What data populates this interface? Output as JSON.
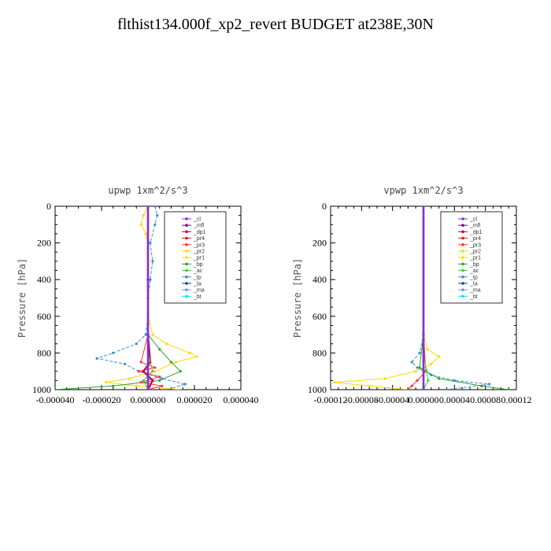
{
  "title": "flthist134.000f_xp2_revert  BUDGET at238E,30N",
  "legend_colors": {
    "_cl": "#8a2be2",
    "_mfl": "#8b008b",
    "_dp1": "#c8004b",
    "_pr4": "#d22222",
    "_pr3": "#ff3030",
    "_pr2": "#ffd700",
    "_pr1": "#ffe000",
    "_bp": "#2ea02e",
    "_ac": "#3cd23c",
    "_tp": "#3a8fd0",
    "_ta": "#1c3f8f",
    "_ma": "#5aa0e0",
    "_bt": "#00e5ff"
  },
  "chart_data": [
    {
      "type": "line",
      "title": "upwp   1xm^2/s^3",
      "xlabel": "",
      "ylabel": "Pressure [hPa]",
      "xlim": [
        -4e-05,
        4e-05
      ],
      "ylim": [
        1000,
        0
      ],
      "xtick_labels": [
        "-0.000040",
        "-0.000020",
        "0.000000",
        "0.000020",
        "0.000040"
      ],
      "xtick_values": [
        -4e-05,
        -2e-05,
        0,
        2e-05,
        4e-05
      ],
      "ytick_labels": [
        "0",
        "200",
        "400",
        "600",
        "800",
        "1000"
      ],
      "ytick_values": [
        0,
        200,
        400,
        600,
        800,
        1000
      ],
      "legend": [
        "_cl",
        "_mfl",
        "_dp1",
        "_pr4",
        "_pr3",
        "_pr2",
        "_pr1",
        "_bp",
        "_ac",
        "_tp",
        "_ta",
        "_ma",
        "_bt"
      ],
      "legend_position": "top-right",
      "series": [
        {
          "name": "_tp",
          "y": [
            0,
            50,
            100,
            200,
            300,
            400,
            500,
            600,
            700,
            750,
            800,
            830,
            860,
            900,
            940,
            970,
            1000
          ],
          "x": [
            3e-06,
            4e-06,
            3e-06,
            1e-06,
            2e-06,
            1e-06,
            0,
            0,
            -1e-06,
            -5e-06,
            -1.5e-05,
            -2.2e-05,
            -1e-05,
            -4e-06,
            6e-06,
            1.6e-05,
            8e-06
          ]
        },
        {
          "name": "_pr2",
          "y": [
            0,
            50,
            100,
            150,
            200,
            400,
            600,
            700,
            750,
            800,
            820,
            850,
            900,
            940,
            960,
            980,
            1000
          ],
          "x": [
            0,
            -2e-06,
            -3e-06,
            -1e-06,
            0,
            0,
            0,
            2e-06,
            8e-06,
            1.8e-05,
            2.1e-05,
            1.2e-05,
            3e-06,
            -8e-06,
            -1.8e-05,
            -5e-06,
            1.4e-05
          ]
        },
        {
          "name": "_bp",
          "y": [
            0,
            400,
            700,
            780,
            850,
            900,
            950,
            980,
            1000
          ],
          "x": [
            0,
            0,
            0,
            5e-06,
            1e-05,
            1.4e-05,
            5e-06,
            -1.5e-05,
            -4e-05
          ]
        },
        {
          "name": "_pr3",
          "y": [
            0,
            400,
            700,
            850,
            880,
            900,
            930,
            960,
            980,
            1000
          ],
          "x": [
            0,
            0,
            0,
            -3e-06,
            3e-06,
            -4e-06,
            5e-06,
            -3e-06,
            6e-06,
            0
          ]
        },
        {
          "name": "_dp1",
          "y": [
            0,
            400,
            700,
            850,
            900,
            950,
            1000
          ],
          "x": [
            0,
            0,
            0,
            1e-06,
            -2e-06,
            2e-06,
            0
          ]
        },
        {
          "name": "_mfl",
          "y": [
            0,
            400,
            700,
            1000
          ],
          "x": [
            0,
            0,
            0,
            0
          ]
        },
        {
          "name": "_ac",
          "y": [
            0,
            800,
            900,
            950,
            1000
          ],
          "x": [
            0,
            0,
            2e-06,
            -2e-06,
            0
          ]
        },
        {
          "name": "_ta",
          "y": [
            0,
            1000
          ],
          "x": [
            0,
            0
          ]
        },
        {
          "name": "_cl",
          "y": [
            0,
            1000
          ],
          "x": [
            0,
            0
          ]
        }
      ]
    },
    {
      "type": "line",
      "title": "vpwp   1xm^2/s^3",
      "xlabel": "",
      "ylabel": "Pressure [hPa]",
      "xlim": [
        -0.00012,
        0.00012
      ],
      "ylim": [
        1000,
        0
      ],
      "xtick_labels": [
        "-0.00012",
        "-0.00008",
        "-0.00004",
        "0.00000",
        "0.00004",
        "0.00008",
        "0.00012"
      ],
      "xtick_values": [
        -0.00012,
        -8e-05,
        -4e-05,
        0,
        4e-05,
        8e-05,
        0.00012
      ],
      "ytick_labels": [
        "0",
        "200",
        "400",
        "600",
        "800",
        "1000"
      ],
      "ytick_values": [
        0,
        200,
        400,
        600,
        800,
        1000
      ],
      "legend": [
        "_cl",
        "_mfl",
        "_dp1",
        "_pr4",
        "_pr3",
        "_pr2",
        "_pr1",
        "_bp",
        "_ac",
        "_tp",
        "_ta",
        "_ma",
        "_bt"
      ],
      "legend_position": "top-right",
      "series": [
        {
          "name": "_pr2",
          "y": [
            0,
            700,
            780,
            820,
            860,
            900,
            940,
            960,
            980,
            1000
          ],
          "x": [
            0,
            0,
            5e-06,
            2e-05,
            1e-05,
            -1e-05,
            -5e-05,
            -0.000115,
            -7e-05,
            -2e-05
          ]
        },
        {
          "name": "_tp",
          "y": [
            0,
            700,
            800,
            850,
            880,
            920,
            950,
            970,
            1000
          ],
          "x": [
            0,
            0,
            -5e-06,
            -1.5e-05,
            -8e-06,
            1e-05,
            4e-05,
            8.5e-05,
            3e-05
          ]
        },
        {
          "name": "_bp",
          "y": [
            0,
            700,
            880,
            940,
            980,
            1000
          ],
          "x": [
            0,
            0,
            -5e-06,
            2e-05,
            7.5e-05,
            0.00011
          ]
        },
        {
          "name": "_pr3",
          "y": [
            0,
            700,
            900,
            950,
            980,
            1000
          ],
          "x": [
            0,
            0,
            3e-06,
            -8e-06,
            -1.5e-05,
            -2e-05
          ]
        },
        {
          "name": "_ac",
          "y": [
            0,
            800,
            900,
            950,
            1000
          ],
          "x": [
            0,
            0,
            4e-06,
            6e-06,
            0
          ]
        },
        {
          "name": "_mfl",
          "y": [
            0,
            1000
          ],
          "x": [
            0,
            0
          ]
        },
        {
          "name": "_dp1",
          "y": [
            0,
            1000
          ],
          "x": [
            0,
            0
          ]
        },
        {
          "name": "_ta",
          "y": [
            0,
            1000
          ],
          "x": [
            0,
            0
          ]
        },
        {
          "name": "_cl",
          "y": [
            0,
            1000
          ],
          "x": [
            0,
            0
          ]
        }
      ]
    }
  ]
}
